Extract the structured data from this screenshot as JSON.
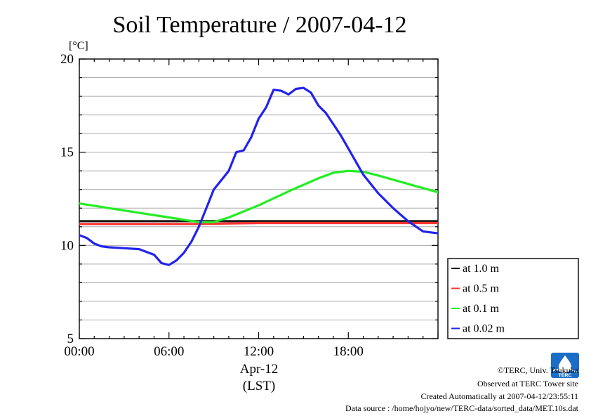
{
  "chart_data": {
    "type": "line",
    "title": "Soil Temperature / 2007-04-12",
    "ylabel": "[°C]",
    "xlabel_date": "Apr-12",
    "xlabel_tz": "(LST)",
    "ylim": [
      5,
      20
    ],
    "xlim": [
      0,
      24
    ],
    "yticks": [
      "5",
      "10",
      "15",
      "20"
    ],
    "xticks": [
      "00:00",
      "06:00",
      "12:00",
      "18:00"
    ],
    "grid": true,
    "legend_position": "right-bottom",
    "series": [
      {
        "name": "at 1.0 m",
        "color": "#1a1a1a",
        "x": [
          0,
          4,
          8,
          12,
          16,
          20,
          24
        ],
        "y": [
          11.3,
          11.3,
          11.3,
          11.3,
          11.3,
          11.3,
          11.3
        ]
      },
      {
        "name": "at 0.5 m",
        "color": "#ff3333",
        "x": [
          0,
          4,
          8,
          12,
          16,
          20,
          24
        ],
        "y": [
          11.15,
          11.15,
          11.15,
          11.2,
          11.2,
          11.2,
          11.2
        ]
      },
      {
        "name": "at 0.1 m",
        "color": "#22ee22",
        "x": [
          0,
          2,
          4,
          6,
          8,
          9,
          10,
          12,
          14,
          16,
          17,
          18,
          19,
          20,
          22,
          24
        ],
        "y": [
          12.25,
          12.0,
          11.75,
          11.5,
          11.25,
          11.25,
          11.5,
          12.15,
          12.9,
          13.6,
          13.9,
          14.0,
          13.95,
          13.75,
          13.3,
          12.85
        ]
      },
      {
        "name": "at 0.02 m",
        "color": "#2222ee",
        "x": [
          0,
          0.5,
          1,
          1.5,
          2,
          3,
          4,
          5,
          5.5,
          6,
          6.5,
          7,
          7.5,
          8,
          8.5,
          9,
          9.5,
          10,
          10.5,
          11,
          11.5,
          12,
          12.5,
          13,
          13.5,
          14,
          14.5,
          15,
          15.5,
          16,
          16.5,
          17,
          17.5,
          18,
          19,
          20,
          21,
          22,
          23,
          24
        ],
        "y": [
          10.55,
          10.4,
          10.1,
          9.95,
          9.9,
          9.85,
          9.8,
          9.5,
          9.05,
          8.95,
          9.2,
          9.6,
          10.2,
          11.0,
          12.0,
          13.0,
          13.5,
          14.0,
          15.0,
          15.1,
          15.8,
          16.8,
          17.4,
          18.35,
          18.3,
          18.1,
          18.4,
          18.45,
          18.2,
          17.5,
          17.1,
          16.5,
          15.9,
          15.2,
          13.8,
          12.8,
          12.0,
          11.3,
          10.75,
          10.65
        ]
      }
    ]
  },
  "credits": {
    "copyright": "©TERC, Univ. Tsukuba",
    "site": "Observed at TERC Tower site",
    "created": "Created Automatically at 2007-04-12/23:55:11",
    "source": "Data source : /home/hojyo/new/TERC-data/sorted_data/MET.10s.dat"
  },
  "logo": {
    "icon": "terc-logo-icon",
    "text": "TERC",
    "color": "#1a6ec8"
  }
}
